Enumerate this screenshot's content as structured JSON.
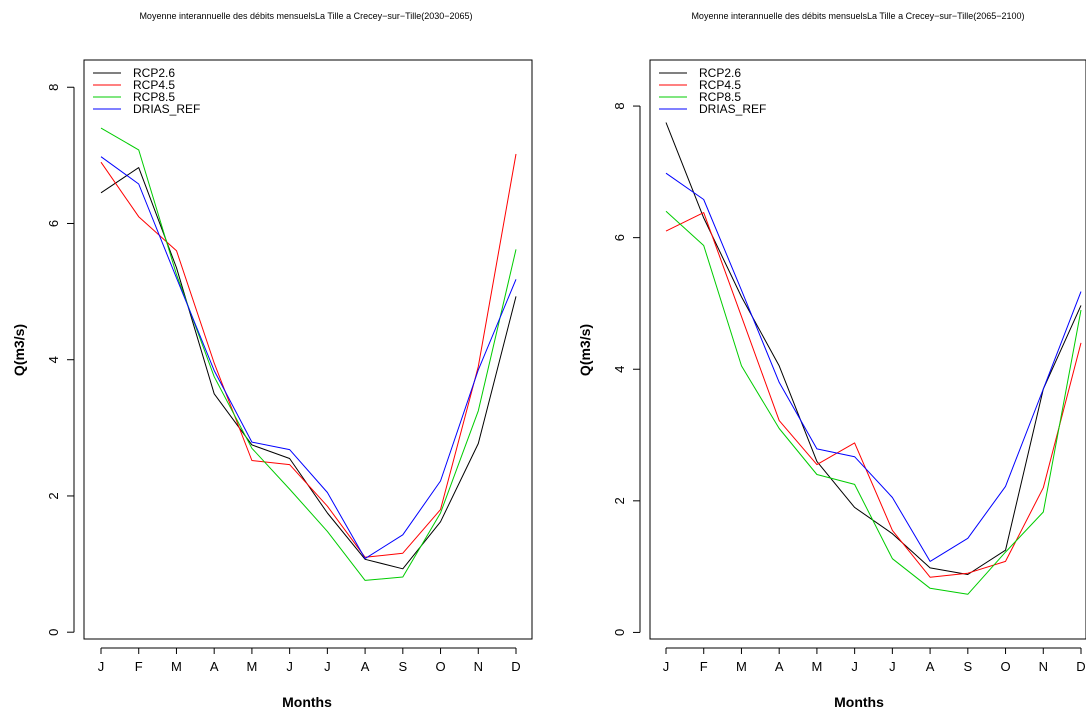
{
  "chart_data": [
    {
      "type": "line",
      "title": "Moyenne interannuelle des débits mensuelsLa Tille a Crecey−sur−Tille(2030−2065)",
      "xlabel": "Months",
      "ylabel": "Q(m3/s)",
      "categories": [
        "J",
        "F",
        "M",
        "A",
        "M",
        "J",
        "J",
        "A",
        "S",
        "O",
        "N",
        "D"
      ],
      "yticks": [
        "0",
        "2",
        "4",
        "6",
        "8"
      ],
      "ylim": [
        -0.1,
        8.4
      ],
      "grid": false,
      "legend_position": "top-left",
      "series": [
        {
          "name": "RCP2.6",
          "color": "#000000",
          "values": [
            6.45,
            6.82,
            5.35,
            3.5,
            2.75,
            2.55,
            1.75,
            1.07,
            0.93,
            1.62,
            2.77,
            4.93
          ]
        },
        {
          "name": "RCP4.5",
          "color": "#ff0000",
          "values": [
            6.9,
            6.1,
            5.6,
            3.95,
            2.52,
            2.46,
            1.85,
            1.1,
            1.16,
            1.8,
            3.9,
            7.02
          ]
        },
        {
          "name": "RCP8.5",
          "color": "#00cc00",
          "values": [
            7.4,
            7.08,
            5.25,
            3.75,
            2.7,
            2.1,
            1.48,
            0.76,
            0.81,
            1.75,
            3.25,
            5.62
          ]
        },
        {
          "name": "DRIAS_REF",
          "color": "#0000ff",
          "values": [
            6.98,
            6.58,
            5.2,
            3.84,
            2.79,
            2.68,
            2.05,
            1.08,
            1.43,
            2.22,
            3.85,
            5.18
          ]
        }
      ]
    },
    {
      "type": "line",
      "title": "Moyenne interannuelle des débits mensuelsLa Tille a Crecey−sur−Tille(2065−2100)",
      "xlabel": "Months",
      "ylabel": "Q(m3/s)",
      "categories": [
        "J",
        "F",
        "M",
        "A",
        "M",
        "J",
        "J",
        "A",
        "S",
        "O",
        "N",
        "D"
      ],
      "yticks": [
        "0",
        "2",
        "4",
        "6",
        "8"
      ],
      "ylim": [
        -0.1,
        8.7
      ],
      "grid": false,
      "legend_position": "top-left",
      "series": [
        {
          "name": "RCP2.6",
          "color": "#000000",
          "values": [
            7.75,
            6.3,
            5.1,
            4.05,
            2.6,
            1.9,
            1.5,
            0.98,
            0.88,
            1.25,
            3.7,
            4.97
          ]
        },
        {
          "name": "RCP4.5",
          "color": "#ff0000",
          "values": [
            6.1,
            6.38,
            4.8,
            3.22,
            2.55,
            2.88,
            1.55,
            0.84,
            0.9,
            1.08,
            2.2,
            4.4
          ]
        },
        {
          "name": "RCP8.5",
          "color": "#00cc00",
          "values": [
            6.4,
            5.88,
            4.05,
            3.1,
            2.4,
            2.25,
            1.12,
            0.67,
            0.58,
            1.22,
            1.83,
            4.9
          ]
        },
        {
          "name": "DRIAS_REF",
          "color": "#0000ff",
          "values": [
            6.98,
            6.58,
            5.2,
            3.8,
            2.79,
            2.67,
            2.05,
            1.08,
            1.43,
            2.22,
            3.7,
            5.18
          ]
        }
      ]
    }
  ]
}
